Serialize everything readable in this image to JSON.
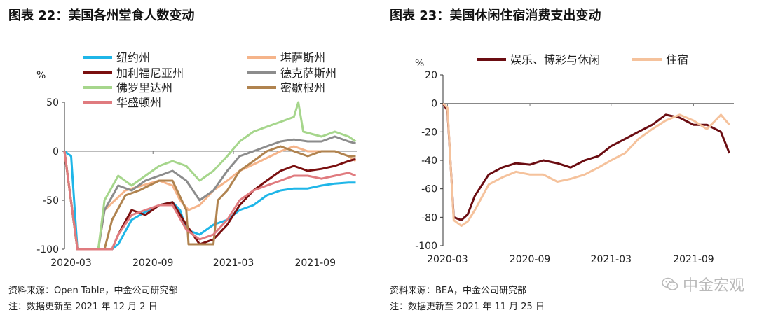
{
  "left": {
    "title": "图表 22：美国各州堂食人数变动",
    "source": "资料来源：Open Table，中金公司研究部",
    "note": "注：数据更新至 2021 年 12 月 2 日"
  },
  "right": {
    "title": "图表 23：美国休闲住宿消费支出变动",
    "source": "资料来源：BEA，中金公司研究部",
    "note": "注：数据更新至 2021 年 11 月 25 日"
  },
  "watermark": "中金宏观",
  "chart_data": [
    {
      "type": "line",
      "title": "图表 22：美国各州堂食人数变动",
      "ylabel": "%",
      "ylim": [
        -100,
        50
      ],
      "yticks": [
        50,
        0,
        -50,
        -100
      ],
      "xlim": [
        "2020-02-15",
        "2021-12-05"
      ],
      "xticks": [
        "2020-03",
        "2020-09",
        "2021-03",
        "2021-09"
      ],
      "grid": false,
      "legend_position": "top",
      "series": [
        {
          "name": "纽约州",
          "color": "#1fb6e8",
          "points": [
            [
              "2020-02-15",
              0
            ],
            [
              "2020-03-01",
              -5
            ],
            [
              "2020-03-15",
              -100
            ],
            [
              "2020-04-15",
              -100
            ],
            [
              "2020-06-01",
              -100
            ],
            [
              "2020-06-15",
              -95
            ],
            [
              "2020-07-15",
              -70
            ],
            [
              "2020-08-15",
              -62
            ],
            [
              "2020-09-15",
              -55
            ],
            [
              "2020-10-15",
              -52
            ],
            [
              "2020-11-01",
              -60
            ],
            [
              "2020-11-15",
              -80
            ],
            [
              "2020-12-15",
              -85
            ],
            [
              "2021-01-15",
              -75
            ],
            [
              "2021-02-15",
              -70
            ],
            [
              "2021-03-15",
              -60
            ],
            [
              "2021-04-15",
              -55
            ],
            [
              "2021-05-15",
              -45
            ],
            [
              "2021-06-15",
              -40
            ],
            [
              "2021-07-15",
              -38
            ],
            [
              "2021-08-15",
              -38
            ],
            [
              "2021-09-15",
              -35
            ],
            [
              "2021-10-15",
              -33
            ],
            [
              "2021-11-15",
              -32
            ],
            [
              "2021-12-01",
              -32
            ]
          ]
        },
        {
          "name": "堪萨斯州",
          "color": "#f5b48a",
          "points": [
            [
              "2020-02-15",
              0
            ],
            [
              "2020-03-15",
              -100
            ],
            [
              "2020-05-01",
              -100
            ],
            [
              "2020-05-15",
              -60
            ],
            [
              "2020-07-01",
              -40
            ],
            [
              "2020-09-15",
              -30
            ],
            [
              "2020-10-15",
              -35
            ],
            [
              "2020-11-01",
              -50
            ],
            [
              "2020-11-20",
              -60
            ],
            [
              "2020-12-15",
              -55
            ],
            [
              "2021-01-15",
              -40
            ],
            [
              "2021-02-15",
              -30
            ],
            [
              "2021-03-15",
              -20
            ],
            [
              "2021-05-01",
              -10
            ],
            [
              "2021-06-15",
              0
            ],
            [
              "2021-07-15",
              5
            ],
            [
              "2021-08-15",
              0
            ],
            [
              "2021-09-15",
              0
            ],
            [
              "2021-10-15",
              0
            ],
            [
              "2021-11-15",
              -5
            ],
            [
              "2021-12-01",
              -10
            ]
          ]
        },
        {
          "name": "加利福尼亚州",
          "color": "#7a0f0f",
          "points": [
            [
              "2020-02-15",
              0
            ],
            [
              "2020-03-15",
              -100
            ],
            [
              "2020-06-01",
              -100
            ],
            [
              "2020-06-15",
              -85
            ],
            [
              "2020-07-15",
              -60
            ],
            [
              "2020-08-15",
              -65
            ],
            [
              "2020-09-15",
              -55
            ],
            [
              "2020-10-15",
              -52
            ],
            [
              "2020-11-15",
              -75
            ],
            [
              "2020-12-15",
              -95
            ],
            [
              "2021-01-15",
              -90
            ],
            [
              "2021-02-15",
              -75
            ],
            [
              "2021-03-15",
              -55
            ],
            [
              "2021-04-15",
              -40
            ],
            [
              "2021-05-15",
              -30
            ],
            [
              "2021-06-15",
              -20
            ],
            [
              "2021-07-15",
              -15
            ],
            [
              "2021-08-15",
              -20
            ],
            [
              "2021-09-15",
              -18
            ],
            [
              "2021-10-15",
              -15
            ],
            [
              "2021-11-15",
              -10
            ],
            [
              "2021-12-01",
              -8
            ]
          ]
        },
        {
          "name": "德克萨斯州",
          "color": "#8c8c8c",
          "points": [
            [
              "2020-02-15",
              0
            ],
            [
              "2020-03-15",
              -100
            ],
            [
              "2020-05-01",
              -100
            ],
            [
              "2020-05-15",
              -60
            ],
            [
              "2020-06-15",
              -35
            ],
            [
              "2020-07-15",
              -40
            ],
            [
              "2020-08-15",
              -30
            ],
            [
              "2020-09-15",
              -25
            ],
            [
              "2020-10-15",
              -20
            ],
            [
              "2020-11-15",
              -30
            ],
            [
              "2020-12-15",
              -50
            ],
            [
              "2021-01-15",
              -40
            ],
            [
              "2021-02-15",
              -20
            ],
            [
              "2021-03-15",
              -5
            ],
            [
              "2021-04-15",
              0
            ],
            [
              "2021-05-15",
              5
            ],
            [
              "2021-06-15",
              10
            ],
            [
              "2021-07-15",
              12
            ],
            [
              "2021-08-15",
              10
            ],
            [
              "2021-09-15",
              10
            ],
            [
              "2021-10-15",
              15
            ],
            [
              "2021-11-15",
              10
            ],
            [
              "2021-12-01",
              8
            ]
          ]
        },
        {
          "name": "佛罗里达州",
          "color": "#a6d68c",
          "points": [
            [
              "2020-02-15",
              0
            ],
            [
              "2020-03-15",
              -100
            ],
            [
              "2020-05-01",
              -100
            ],
            [
              "2020-05-15",
              -50
            ],
            [
              "2020-06-15",
              -25
            ],
            [
              "2020-07-15",
              -35
            ],
            [
              "2020-08-15",
              -25
            ],
            [
              "2020-09-15",
              -15
            ],
            [
              "2020-10-15",
              -10
            ],
            [
              "2020-11-15",
              -15
            ],
            [
              "2020-12-15",
              -30
            ],
            [
              "2021-01-15",
              -20
            ],
            [
              "2021-02-15",
              -5
            ],
            [
              "2021-03-15",
              10
            ],
            [
              "2021-04-15",
              20
            ],
            [
              "2021-05-15",
              25
            ],
            [
              "2021-06-15",
              30
            ],
            [
              "2021-07-15",
              35
            ],
            [
              "2021-07-25",
              50
            ],
            [
              "2021-08-05",
              20
            ],
            [
              "2021-09-15",
              15
            ],
            [
              "2021-10-15",
              20
            ],
            [
              "2021-11-15",
              15
            ],
            [
              "2021-12-01",
              10
            ]
          ]
        },
        {
          "name": "密歇根州",
          "color": "#b0834f",
          "points": [
            [
              "2020-02-15",
              0
            ],
            [
              "2020-03-15",
              -100
            ],
            [
              "2020-05-15",
              -100
            ],
            [
              "2020-06-01",
              -70
            ],
            [
              "2020-07-01",
              -45
            ],
            [
              "2020-08-01",
              -40
            ],
            [
              "2020-09-15",
              -30
            ],
            [
              "2020-10-15",
              -30
            ],
            [
              "2020-11-15",
              -60
            ],
            [
              "2020-11-20",
              -95
            ],
            [
              "2021-01-15",
              -95
            ],
            [
              "2021-01-25",
              -50
            ],
            [
              "2021-02-15",
              -40
            ],
            [
              "2021-03-15",
              -20
            ],
            [
              "2021-04-15",
              -10
            ],
            [
              "2021-05-15",
              0
            ],
            [
              "2021-06-15",
              5
            ],
            [
              "2021-07-15",
              0
            ],
            [
              "2021-08-15",
              -5
            ],
            [
              "2021-09-15",
              0
            ],
            [
              "2021-10-15",
              0
            ],
            [
              "2021-11-15",
              -5
            ],
            [
              "2021-12-01",
              -5
            ]
          ]
        },
        {
          "name": "华盛顿州",
          "color": "#e07b7f",
          "points": [
            [
              "2020-02-15",
              0
            ],
            [
              "2020-03-15",
              -100
            ],
            [
              "2020-06-01",
              -100
            ],
            [
              "2020-06-15",
              -85
            ],
            [
              "2020-07-15",
              -65
            ],
            [
              "2020-08-15",
              -60
            ],
            [
              "2020-09-15",
              -55
            ],
            [
              "2020-10-15",
              -55
            ],
            [
              "2020-11-15",
              -80
            ],
            [
              "2020-12-15",
              -90
            ],
            [
              "2021-01-15",
              -85
            ],
            [
              "2021-02-15",
              -70
            ],
            [
              "2021-03-15",
              -50
            ],
            [
              "2021-04-15",
              -40
            ],
            [
              "2021-05-15",
              -35
            ],
            [
              "2021-06-15",
              -30
            ],
            [
              "2021-07-15",
              -25
            ],
            [
              "2021-08-15",
              -25
            ],
            [
              "2021-09-15",
              -28
            ],
            [
              "2021-10-15",
              -25
            ],
            [
              "2021-11-15",
              -22
            ],
            [
              "2021-12-01",
              -25
            ]
          ]
        }
      ]
    },
    {
      "type": "line",
      "title": "图表 23：美国休闲住宿消费支出变动",
      "ylabel": "%",
      "ylim": [
        -100,
        20
      ],
      "yticks": [
        20,
        0,
        -20,
        -40,
        -60,
        -80,
        -100
      ],
      "xlim": [
        "2020-02-20",
        "2021-11-30"
      ],
      "xticks": [
        "2020-03",
        "2020-09",
        "2021-03",
        "2021-09"
      ],
      "grid": false,
      "legend_position": "top",
      "series": [
        {
          "name": "娱乐、博彩与休闲",
          "color": "#6b0d12",
          "points": [
            [
              "2020-02-20",
              0
            ],
            [
              "2020-03-01",
              -5
            ],
            [
              "2020-03-15",
              -80
            ],
            [
              "2020-04-01",
              -82
            ],
            [
              "2020-04-15",
              -78
            ],
            [
              "2020-05-01",
              -65
            ],
            [
              "2020-06-01",
              -50
            ],
            [
              "2020-07-01",
              -45
            ],
            [
              "2020-08-01",
              -42
            ],
            [
              "2020-09-01",
              -43
            ],
            [
              "2020-10-01",
              -40
            ],
            [
              "2020-11-01",
              -42
            ],
            [
              "2020-12-01",
              -45
            ],
            [
              "2021-01-01",
              -40
            ],
            [
              "2021-02-01",
              -37
            ],
            [
              "2021-03-01",
              -30
            ],
            [
              "2021-04-01",
              -25
            ],
            [
              "2021-05-01",
              -20
            ],
            [
              "2021-06-01",
              -15
            ],
            [
              "2021-07-01",
              -8
            ],
            [
              "2021-08-01",
              -10
            ],
            [
              "2021-09-01",
              -15
            ],
            [
              "2021-10-01",
              -15
            ],
            [
              "2021-11-01",
              -20
            ],
            [
              "2021-11-20",
              -35
            ]
          ]
        },
        {
          "name": "住宿",
          "color": "#f5c29c",
          "points": [
            [
              "2020-02-20",
              0
            ],
            [
              "2020-03-01",
              -3
            ],
            [
              "2020-03-15",
              -82
            ],
            [
              "2020-04-01",
              -86
            ],
            [
              "2020-04-15",
              -83
            ],
            [
              "2020-05-01",
              -75
            ],
            [
              "2020-06-01",
              -57
            ],
            [
              "2020-07-01",
              -52
            ],
            [
              "2020-08-01",
              -48
            ],
            [
              "2020-09-01",
              -50
            ],
            [
              "2020-10-01",
              -50
            ],
            [
              "2020-11-01",
              -55
            ],
            [
              "2020-12-01",
              -53
            ],
            [
              "2021-01-01",
              -50
            ],
            [
              "2021-02-01",
              -45
            ],
            [
              "2021-03-01",
              -40
            ],
            [
              "2021-04-01",
              -35
            ],
            [
              "2021-05-01",
              -25
            ],
            [
              "2021-06-01",
              -18
            ],
            [
              "2021-07-01",
              -12
            ],
            [
              "2021-08-01",
              -8
            ],
            [
              "2021-09-01",
              -12
            ],
            [
              "2021-10-01",
              -18
            ],
            [
              "2021-11-01",
              -8
            ],
            [
              "2021-11-20",
              -15
            ]
          ]
        }
      ]
    }
  ]
}
